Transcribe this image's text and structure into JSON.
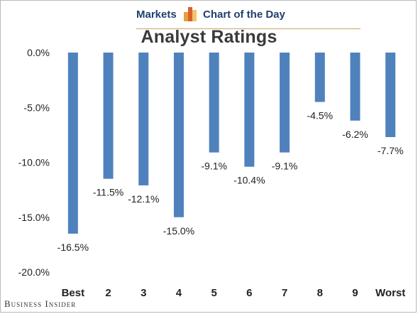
{
  "header": {
    "left": "Markets",
    "right": "Chart of the Day",
    "logo_icon": "bar-chart-icon",
    "logo_colors": [
      "#e8a13a",
      "#d9602c",
      "#f2c36b"
    ]
  },
  "footer": {
    "source": "Business Insider"
  },
  "chart_data": {
    "type": "bar",
    "title": "Analyst Ratings",
    "categories": [
      "Best",
      "2",
      "3",
      "4",
      "5",
      "6",
      "7",
      "8",
      "9",
      "Worst"
    ],
    "values": [
      -16.5,
      -11.5,
      -12.1,
      -15.0,
      -9.1,
      -10.4,
      -9.1,
      -4.5,
      -6.2,
      -7.7
    ],
    "value_labels": [
      "-16.5%",
      "-11.5%",
      "-12.1%",
      "-15.0%",
      "-9.1%",
      "-10.4%",
      "-9.1%",
      "-4.5%",
      "-6.2%",
      "-7.7%"
    ],
    "yticks": [
      0,
      -5,
      -10,
      -15,
      -20
    ],
    "ytick_labels": [
      "0.0%",
      "-5.0%",
      "-10.0%",
      "-15.0%",
      "-20.0%"
    ],
    "ylim": [
      -20,
      0
    ],
    "grid": false,
    "bar_color": "#4f81bd"
  }
}
